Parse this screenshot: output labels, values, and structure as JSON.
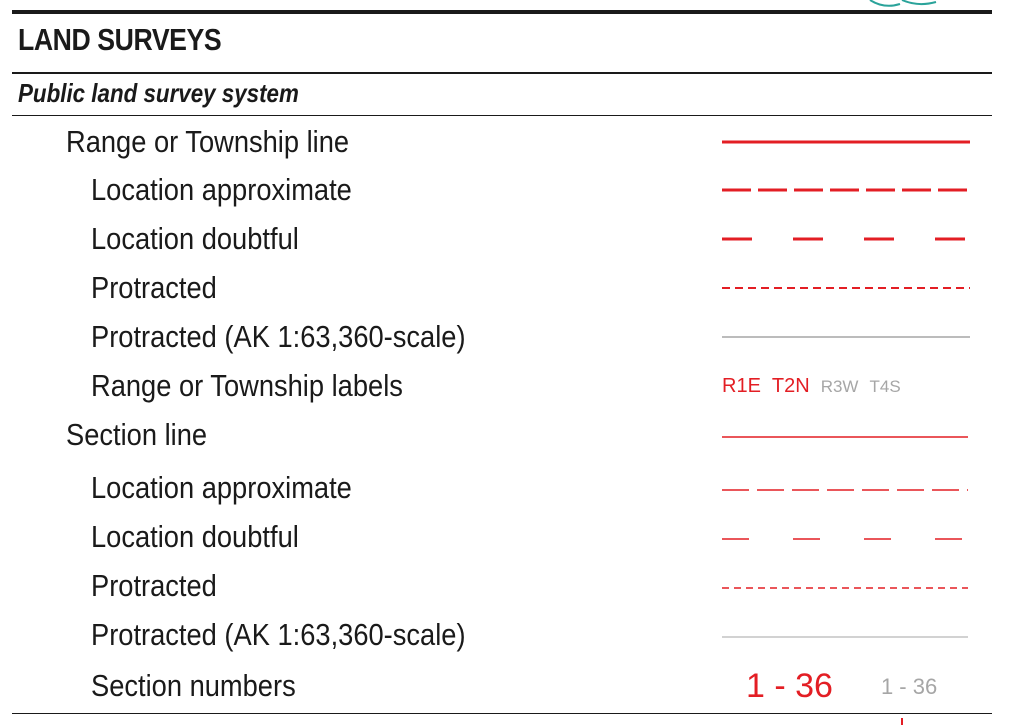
{
  "colors": {
    "red": "#e31e24",
    "gray": "#a6a6a6",
    "ink": "#1a1a1a"
  },
  "title": "LAND SURVEYS",
  "subtitle": "Public land survey system",
  "rows": [
    {
      "label": "Range or Township line",
      "symbol": "solid-red-line"
    },
    {
      "label": "Location approximate",
      "symbol": "long-dash-red-line"
    },
    {
      "label": "Location doubtful",
      "symbol": "spaced-dash-red-line"
    },
    {
      "label": "Protracted",
      "symbol": "short-dash-red-line"
    },
    {
      "label": "Protracted (AK 1:63,360-scale)",
      "symbol": "thin-gray-line"
    },
    {
      "label": "Range or Township labels",
      "symbol_text": [
        "R1E",
        "T2N",
        "R3W",
        "T4S"
      ]
    },
    {
      "label": "Section line",
      "symbol": "thin-solid-red-line"
    },
    {
      "label": "Location approximate",
      "symbol": "thin-long-dash-red-line"
    },
    {
      "label": "Location doubtful",
      "symbol": "thin-spaced-dash-red-line"
    },
    {
      "label": "Protracted",
      "symbol": "thin-short-dash-red-line"
    },
    {
      "label": "Protracted (AK 1:63,360-scale)",
      "symbol": "hairline-gray-line"
    },
    {
      "label": "Section numbers",
      "symbol_text": [
        "1 - 36",
        "1 - 36"
      ]
    }
  ]
}
